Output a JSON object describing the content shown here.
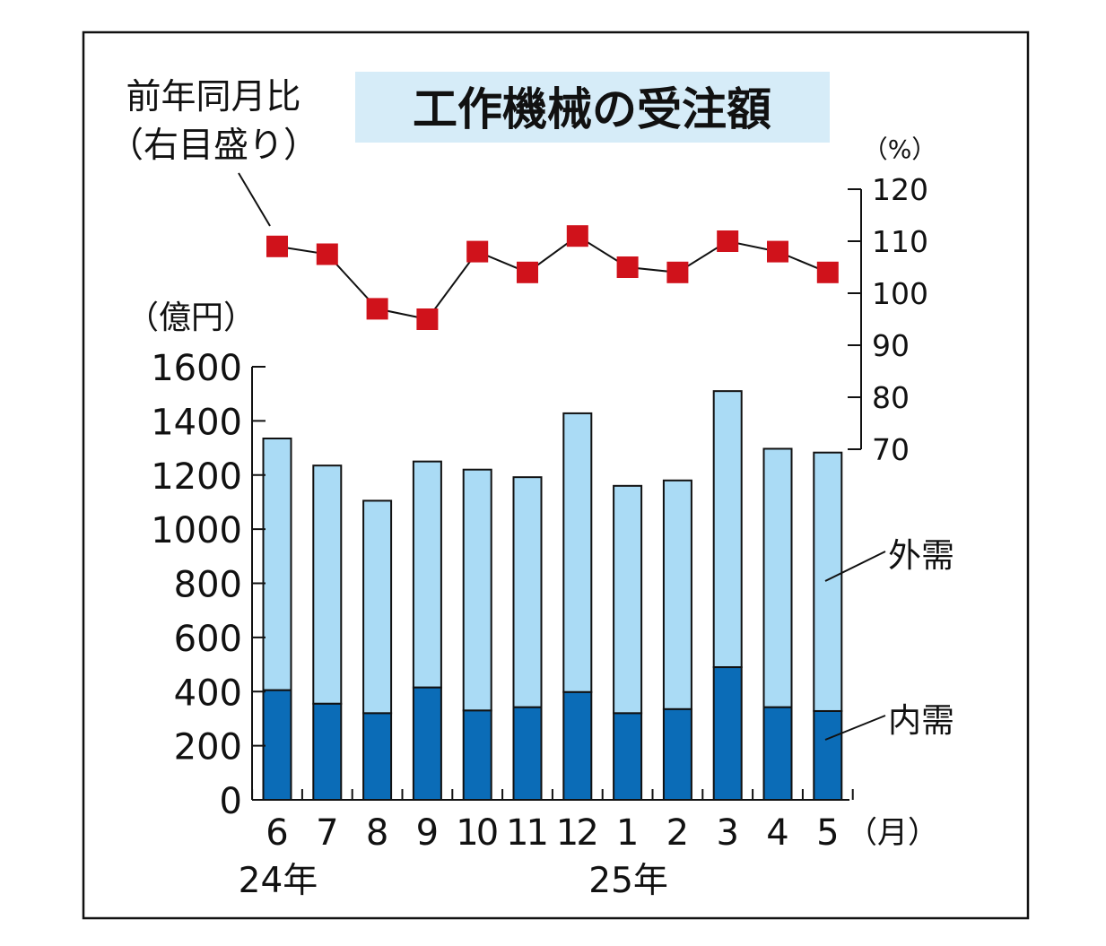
{
  "colors": {
    "domestic": "#0b6cb7",
    "foreign": "#aadbf5",
    "marker": "#d0121b",
    "title_bg": "#d6ecf8",
    "frame": "#111111"
  },
  "chart_data": {
    "type": "bar",
    "title": "工作機械の受注額",
    "categories": [
      "6",
      "7",
      "8",
      "9",
      "10",
      "11",
      "12",
      "1",
      "2",
      "3",
      "4",
      "5"
    ],
    "x_unit": "（月）",
    "year_labels": [
      {
        "text": "24年",
        "category": "6"
      },
      {
        "text": "25年",
        "category": "1"
      }
    ],
    "stacked": true,
    "series": [
      {
        "name": "内需",
        "axis": "left",
        "values": [
          405,
          355,
          320,
          415,
          330,
          342,
          398,
          320,
          335,
          490,
          342,
          328
        ]
      },
      {
        "name": "外需",
        "axis": "left",
        "values": [
          930,
          880,
          785,
          835,
          890,
          850,
          1030,
          840,
          845,
          1020,
          955,
          955
        ]
      }
    ],
    "left_axis": {
      "unit": "（億円）",
      "ylim": [
        0,
        1600
      ],
      "ticks": [
        0,
        200,
        400,
        600,
        800,
        1000,
        1200,
        1400,
        1600
      ]
    },
    "line_series": {
      "name": "前年同月比",
      "label_line1": "前年同月比",
      "label_line2": "（右目盛り）",
      "axis": "right",
      "values": [
        109,
        107.5,
        97,
        95,
        108,
        104,
        111,
        105,
        104,
        110,
        108,
        104
      ]
    },
    "right_axis": {
      "unit": "（%）",
      "ylim": [
        70,
        120
      ],
      "ticks": [
        70,
        80,
        90,
        100,
        110,
        120
      ]
    },
    "grid": false,
    "legend": "inline-right"
  }
}
